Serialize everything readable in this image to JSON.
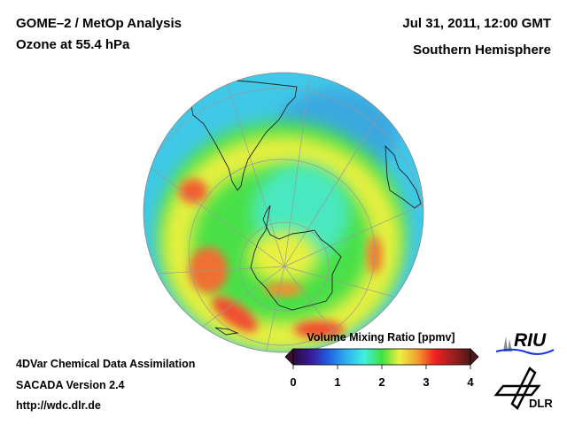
{
  "header": {
    "title_line1": "GOME–2 / MetOp Analysis",
    "title_line2": "Ozone at 55.4 hPa",
    "date": "Jul 31, 2011, 12:00 GMT",
    "region": "Southern Hemisphere"
  },
  "footer": {
    "line1": "4DVar Chemical Data Assimilation",
    "line2": "SACADA Version 2.4",
    "line3": "http://wdc.dlr.de"
  },
  "colorbar": {
    "title": "Volume Mixing Ratio [ppmv]",
    "ticks": [
      "0",
      "1",
      "2",
      "3",
      "4"
    ],
    "range": [
      0,
      4
    ],
    "colors": [
      "#2a0a3a",
      "#3a1a9a",
      "#2060e0",
      "#30b0f0",
      "#40f0e0",
      "#40e040",
      "#f0f040",
      "#f0a030",
      "#f02020",
      "#a02020",
      "#501818"
    ]
  },
  "logos": {
    "riu": "RIU",
    "dlr": "DLR"
  }
}
